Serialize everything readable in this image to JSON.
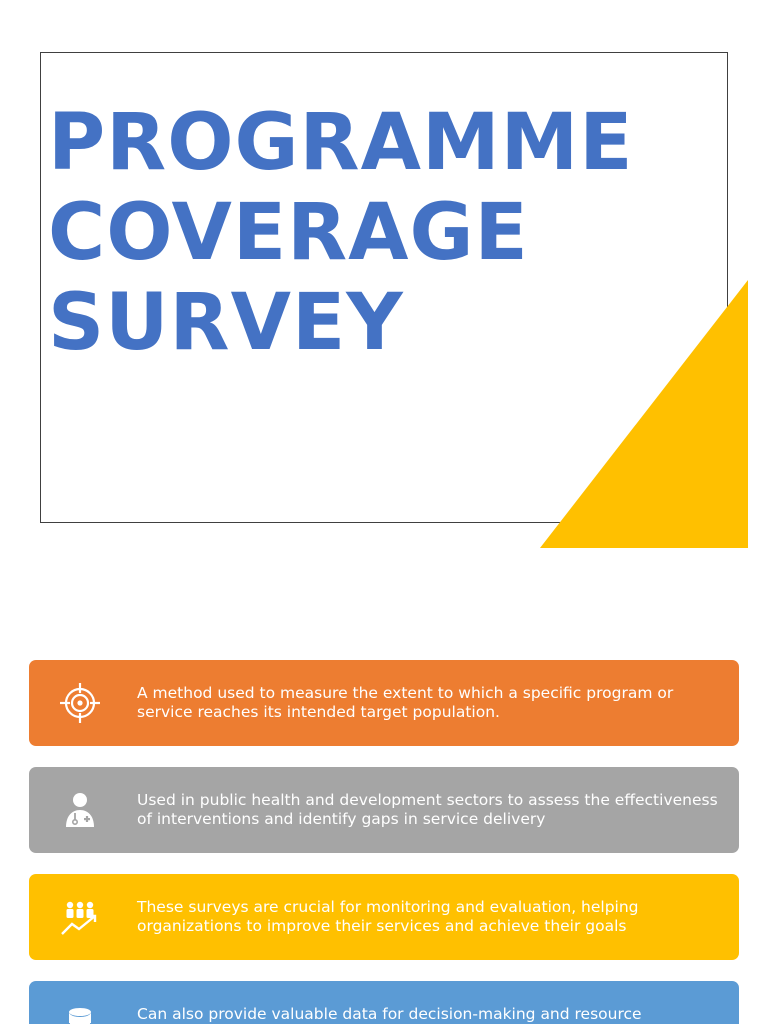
{
  "title": {
    "lines": [
      "PROGRAMME",
      "COVERAGE",
      "SURVEY"
    ]
  },
  "colors": {
    "title": "#4472C4",
    "accent_triangle": "#FFC000",
    "frame_border": "#404040"
  },
  "bars": [
    {
      "icon": "target-icon",
      "color": "#ED7D31",
      "text": "A method used to measure the extent to which a specific program or service reaches its intended target population."
    },
    {
      "icon": "health-worker-icon",
      "color": "#A5A5A5",
      "text": "Used in public health and development sectors to assess the effectiveness of interventions and identify gaps in service delivery"
    },
    {
      "icon": "team-growth-icon",
      "color": "#FFC000",
      "text": "These surveys are crucial for monitoring and evaluation, helping organizations to improve their services and achieve their goals"
    },
    {
      "icon": "database-icon",
      "color": "#5B9BD5",
      "text": "Can also provide valuable data for decision-making and resource"
    }
  ]
}
